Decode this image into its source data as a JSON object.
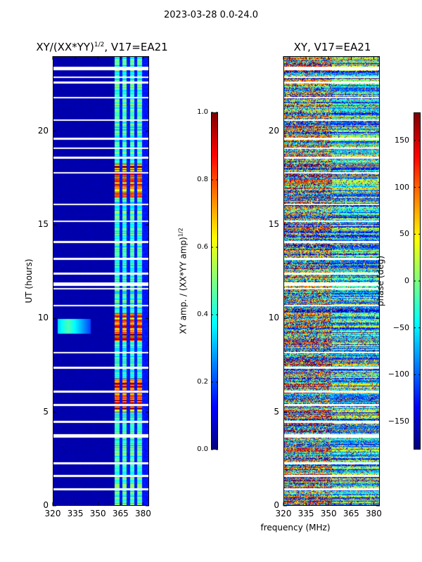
{
  "figure": {
    "suptitle": "2023-03-28 0.0-24.0",
    "shared_xlabel": "frequency (MHz)"
  },
  "colors": {
    "cmap": [
      "#00007f",
      "#0000ff",
      "#007fff",
      "#00ffff",
      "#7fff7f",
      "#ffff00",
      "#ff7f00",
      "#ff0000",
      "#7f0000"
    ],
    "axes": "#000000",
    "background": "#ffffff"
  },
  "chart_data": [
    {
      "type": "heatmap",
      "title_main": "XY/(XX*YY)",
      "title_sup": "1/2",
      "title_rest": ", V17=EA21",
      "xlabel": "",
      "ylabel": "UT (hours)",
      "xlim": [
        320,
        384
      ],
      "ylim": [
        0,
        24
      ],
      "xticks": [
        320,
        335,
        350,
        365,
        380
      ],
      "yticks": [
        0,
        5,
        10,
        15,
        20
      ],
      "colorbar": {
        "label_main": "XY amp. / (XX*YY amp)",
        "label_sup": "1/2",
        "range": [
          0.0,
          1.0
        ],
        "ticks": [
          "0.0",
          "0.2",
          "0.4",
          "0.6",
          "0.8",
          "1.0"
        ],
        "tick_values": [
          0.0,
          0.2,
          0.4,
          0.6,
          0.8,
          1.0
        ]
      },
      "features": {
        "background_level": 0.03,
        "active_band_mhz": [
          361,
          384
        ],
        "active_stripes_mhz": [
          [
            361,
            364
          ],
          [
            366,
            369
          ],
          [
            371,
            374
          ],
          [
            376,
            379
          ]
        ],
        "bright_ut_ranges": [
          [
            5.0,
            6.8
          ],
          [
            8.8,
            10.3
          ],
          [
            16.5,
            18.3
          ]
        ],
        "bright_level": 0.75,
        "rfi_blob": {
          "freq_mhz": [
            323,
            345
          ],
          "ut": [
            9.2,
            10.0
          ],
          "level": 0.35
        },
        "flagged_ut": [
          0.9,
          1.6,
          2.3,
          3.7,
          3.8,
          4.5,
          5.4,
          6.1,
          7.4,
          8.2,
          10.7,
          11.6,
          11.8,
          11.9,
          12.4,
          13.2,
          14.1,
          15.2,
          16.1,
          17.8,
          18.6,
          19.1,
          19.6,
          20.6,
          21.8,
          22.6,
          22.9,
          23.3,
          23.4
        ]
      }
    },
    {
      "type": "heatmap",
      "title_main": "XY, V17=EA21",
      "xlabel": "frequency (MHz)",
      "ylabel": "",
      "xlim": [
        320,
        384
      ],
      "ylim": [
        0,
        24
      ],
      "xticks": [
        320,
        335,
        350,
        365,
        380
      ],
      "yticks": [
        0,
        5,
        10,
        15,
        20
      ],
      "colorbar": {
        "label_main": "phase (deg)",
        "range": [
          -180,
          180
        ],
        "ticks": [
          "−150",
          "−100",
          "−50",
          "0",
          "50",
          "100",
          "150"
        ],
        "tick_values": [
          -150,
          -100,
          -50,
          0,
          50,
          100,
          150
        ]
      },
      "features": {
        "noisy_band_mhz": [
          320,
          352
        ],
        "coherent_band_mhz": [
          352,
          384
        ],
        "coherent_phase_deg": -120,
        "flagged_ut": [
          0.9,
          1.6,
          2.3,
          3.7,
          3.8,
          4.5,
          5.4,
          6.1,
          7.4,
          8.2,
          10.7,
          11.6,
          11.8,
          11.9,
          12.4,
          13.2,
          14.1,
          15.2,
          16.1,
          17.8,
          18.6,
          19.1,
          19.6,
          20.6,
          21.8,
          22.6,
          22.9,
          23.3,
          23.4
        ]
      }
    }
  ]
}
